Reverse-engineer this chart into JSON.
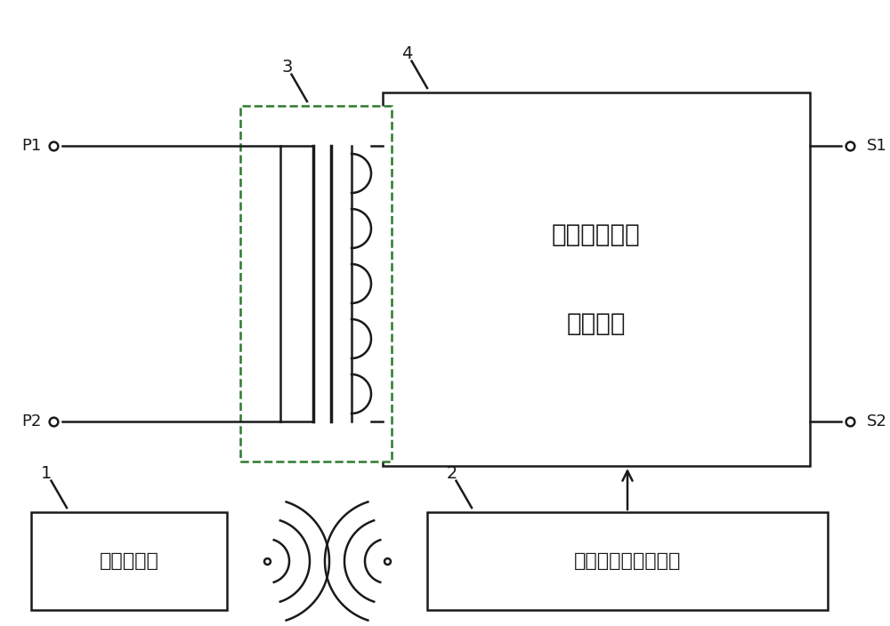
{
  "bg_color": "#ffffff",
  "line_color": "#1a1a1a",
  "dashed_color": "#2d7a2d",
  "fig_width": 10.0,
  "fig_height": 7.04,
  "box4_text_line1": "故障模拟开关",
  "box4_text_line2": "执行电路",
  "box1_text": "无线发射器",
  "box2_text": "无线开关控制驱动器",
  "P1": "P1",
  "P2": "P2",
  "S1": "S1",
  "S2": "S2",
  "num1": "1",
  "num2": "2",
  "num3": "3",
  "num4": "4"
}
